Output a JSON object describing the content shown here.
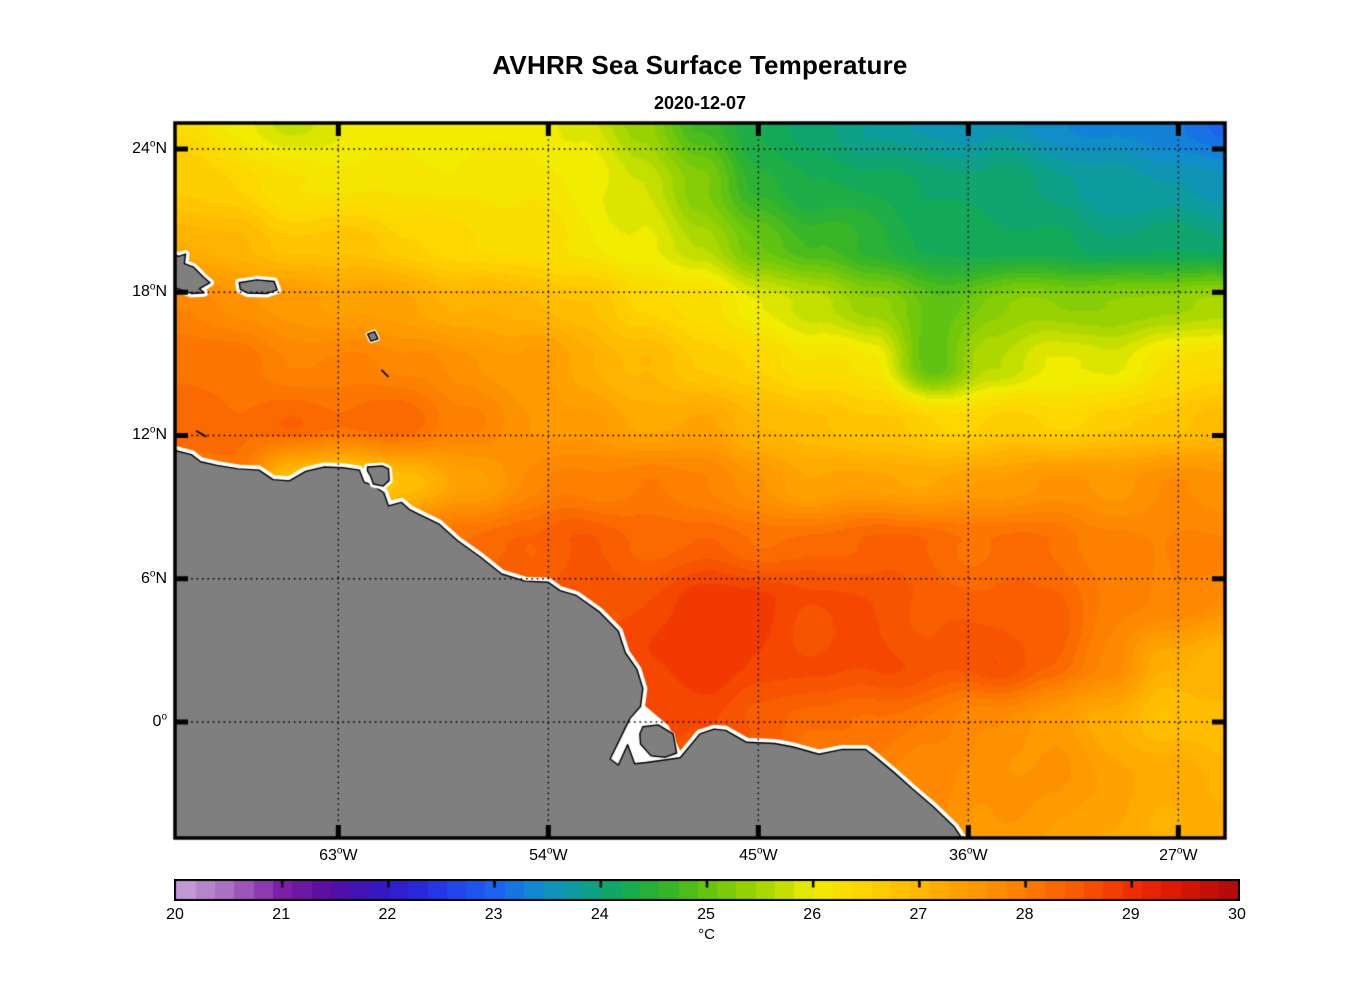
{
  "header": {
    "title": "AVHRR Sea Surface Temperature",
    "subtitle": "2020-12-07"
  },
  "axes": {
    "lon_range_w": [
      70,
      25
    ],
    "lat_range": [
      -4.86,
      25.09
    ],
    "x_ticks": [
      {
        "lon_w": 63,
        "num": "63",
        "suffix": "W",
        "display": "63°W"
      },
      {
        "lon_w": 54,
        "num": "54",
        "suffix": "W",
        "display": "54°W"
      },
      {
        "lon_w": 45,
        "num": "45",
        "suffix": "W",
        "display": "45°W"
      },
      {
        "lon_w": 36,
        "num": "36",
        "suffix": "W",
        "display": "36°W"
      },
      {
        "lon_w": 27,
        "num": "27",
        "suffix": "W",
        "display": "27°W"
      }
    ],
    "y_ticks": [
      {
        "lat": 24,
        "num": "24",
        "suffix": "N",
        "display": "24°N"
      },
      {
        "lat": 18,
        "num": "18",
        "suffix": "N",
        "display": "18°N"
      },
      {
        "lat": 12,
        "num": "12",
        "suffix": "N",
        "display": "12°N"
      },
      {
        "lat": 6,
        "num": "6",
        "suffix": "N",
        "display": "6°N"
      },
      {
        "lat": 0,
        "num": "0",
        "suffix": "",
        "display": "0°"
      }
    ],
    "grid_on": true
  },
  "colorbar": {
    "min": 20,
    "max": 30,
    "unit": "°C",
    "tick_labels": [
      "20",
      "21",
      "22",
      "23",
      "24",
      "25",
      "26",
      "27",
      "28",
      "29",
      "30"
    ],
    "segments": 55,
    "colormap_stops": [
      [
        20.0,
        "#c9a3da"
      ],
      [
        20.5,
        "#a86cc0"
      ],
      [
        21.0,
        "#7d1fa8"
      ],
      [
        21.4,
        "#5a0f9e"
      ],
      [
        21.8,
        "#3c14b8"
      ],
      [
        22.2,
        "#2b24d8"
      ],
      [
        22.6,
        "#2343ec"
      ],
      [
        23.0,
        "#1b63f0"
      ],
      [
        23.4,
        "#128bd0"
      ],
      [
        23.8,
        "#0d9f97"
      ],
      [
        24.2,
        "#12a958"
      ],
      [
        24.6,
        "#33b42a"
      ],
      [
        25.0,
        "#66c40e"
      ],
      [
        25.5,
        "#a4d600"
      ],
      [
        26.0,
        "#f2ec00"
      ],
      [
        26.5,
        "#ffd400"
      ],
      [
        27.0,
        "#ffb600"
      ],
      [
        27.5,
        "#ff9a00"
      ],
      [
        28.0,
        "#fd7d00"
      ],
      [
        28.5,
        "#f85800"
      ],
      [
        29.0,
        "#f02d00"
      ],
      [
        29.5,
        "#d81407"
      ],
      [
        30.0,
        "#ae0a0d"
      ]
    ]
  },
  "colors": {
    "background": "#ffffff",
    "land": "#7f7f7f",
    "coast_halo": "#ffffff",
    "coast_line": "#000000",
    "frame": "#000000",
    "text": "#000000"
  },
  "chart_data": {
    "type": "heatmap",
    "title": "AVHRR Sea Surface Temperature",
    "date": "2020-12-07",
    "units": "°C",
    "value_range": [
      20,
      30
    ],
    "grid_lines": {
      "lat": [
        24,
        18,
        12,
        6,
        0
      ],
      "lon_w": [
        63,
        54,
        45,
        36,
        27
      ]
    },
    "lon_w": [
      70,
      67.5,
      65,
      62.5,
      60,
      57.5,
      55,
      52.5,
      50,
      47.5,
      45,
      42.5,
      40,
      37.5,
      35,
      32.5,
      30,
      27.5,
      25
    ],
    "lat": [
      25,
      22.5,
      20,
      17.5,
      15,
      12.5,
      10,
      7.5,
      5,
      2.5,
      0,
      -2.5,
      -5
    ],
    "sst_c": [
      [
        26.3,
        26.0,
        25.7,
        25.9,
        26.0,
        26.1,
        26.0,
        25.9,
        25.4,
        24.6,
        24.3,
        24.0,
        23.8,
        23.7,
        23.6,
        23.4,
        23.3,
        23.2,
        23.0
      ],
      [
        26.6,
        26.5,
        26.3,
        26.2,
        26.2,
        26.2,
        26.1,
        26.0,
        25.8,
        25.2,
        24.6,
        24.3,
        24.2,
        24.1,
        24.0,
        23.9,
        23.8,
        23.7,
        23.6
      ],
      [
        27.2,
        27.0,
        26.8,
        26.7,
        26.5,
        26.4,
        26.3,
        26.2,
        26.0,
        25.6,
        25.0,
        24.7,
        24.4,
        24.3,
        24.2,
        24.2,
        24.1,
        24.0,
        24.0
      ],
      [
        27.8,
        27.6,
        27.5,
        27.4,
        27.3,
        27.2,
        27.0,
        26.8,
        26.5,
        26.2,
        26.0,
        25.7,
        25.4,
        25.0,
        25.2,
        25.3,
        25.3,
        25.4,
        25.5
      ],
      [
        28.2,
        28.1,
        28.0,
        27.9,
        27.8,
        27.6,
        27.4,
        27.2,
        27.0,
        26.7,
        26.5,
        26.3,
        26.0,
        24.9,
        25.6,
        25.9,
        26.0,
        26.2,
        26.4
      ],
      [
        28.3,
        28.2,
        28.3,
        28.2,
        28.2,
        28.0,
        27.6,
        27.5,
        27.3,
        27.2,
        27.0,
        26.8,
        26.7,
        26.6,
        26.6,
        26.5,
        26.6,
        26.7,
        26.8
      ],
      [
        27.9,
        28.0,
        26.8,
        26.5,
        26.9,
        27.4,
        27.7,
        27.9,
        28.0,
        27.9,
        27.6,
        27.4,
        27.3,
        27.3,
        27.4,
        27.5,
        27.6,
        27.7,
        27.7
      ],
      [
        28.2,
        28.2,
        28.2,
        28.2,
        28.2,
        28.2,
        28.3,
        28.5,
        28.4,
        28.3,
        28.2,
        28.2,
        28.3,
        28.3,
        28.2,
        28.2,
        28.0,
        27.9,
        27.8
      ],
      [
        28.5,
        28.5,
        28.5,
        28.5,
        28.5,
        28.5,
        28.5,
        28.6,
        28.6,
        28.8,
        28.8,
        28.7,
        28.6,
        28.5,
        28.4,
        28.3,
        28.0,
        27.8,
        27.7
      ],
      [
        28.6,
        28.6,
        28.6,
        28.6,
        28.6,
        28.6,
        28.6,
        28.7,
        28.8,
        28.9,
        28.8,
        28.7,
        28.6,
        28.5,
        28.6,
        28.3,
        27.9,
        27.2,
        27.0
      ],
      [
        28.8,
        28.8,
        28.8,
        28.8,
        28.8,
        28.8,
        28.8,
        28.8,
        28.9,
        28.6,
        28.4,
        28.2,
        28.1,
        28.0,
        27.8,
        27.5,
        27.2,
        26.8,
        26.8
      ],
      [
        28.3,
        28.3,
        28.3,
        28.3,
        28.3,
        28.3,
        28.3,
        28.3,
        28.3,
        28.2,
        28.2,
        28.0,
        27.9,
        27.8,
        27.6,
        27.5,
        27.4,
        27.2,
        27.1
      ],
      [
        28.0,
        28.0,
        28.0,
        28.0,
        28.0,
        28.0,
        28.0,
        28.0,
        28.0,
        28.0,
        27.9,
        27.8,
        27.7,
        27.7,
        27.5,
        27.4,
        27.3,
        27.2,
        27.1
      ]
    ]
  },
  "land": {
    "mainland_lonlat": [
      [
        70.3,
        11.45
      ],
      [
        69.3,
        11.2
      ],
      [
        68.9,
        10.9
      ],
      [
        68.2,
        10.75
      ],
      [
        67.3,
        10.6
      ],
      [
        66.4,
        10.55
      ],
      [
        65.8,
        10.15
      ],
      [
        65.1,
        10.1
      ],
      [
        64.4,
        10.5
      ],
      [
        63.6,
        10.68
      ],
      [
        62.8,
        10.65
      ],
      [
        62.1,
        10.55
      ],
      [
        61.9,
        10.05
      ],
      [
        61.5,
        9.9
      ],
      [
        61.05,
        9.6
      ],
      [
        60.85,
        9.05
      ],
      [
        60.3,
        9.2
      ],
      [
        59.95,
        8.9
      ],
      [
        59.65,
        8.75
      ],
      [
        58.7,
        8.3
      ],
      [
        57.9,
        7.6
      ],
      [
        56.9,
        6.9
      ],
      [
        56.0,
        6.2
      ],
      [
        55.0,
        5.9
      ],
      [
        54.0,
        5.85
      ],
      [
        53.5,
        5.5
      ],
      [
        52.8,
        5.3
      ],
      [
        51.8,
        4.6
      ],
      [
        51.0,
        3.8
      ],
      [
        50.7,
        2.9
      ],
      [
        50.2,
        2.2
      ],
      [
        49.95,
        1.4
      ],
      [
        50.05,
        0.65
      ],
      [
        50.5,
        0.15
      ],
      [
        50.95,
        -0.75
      ],
      [
        51.35,
        -1.55
      ],
      [
        51.0,
        -1.8
      ],
      [
        50.6,
        -0.95
      ],
      [
        50.3,
        -1.75
      ],
      [
        49.8,
        -1.7
      ],
      [
        48.35,
        -1.5
      ],
      [
        47.5,
        -0.5
      ],
      [
        46.9,
        -0.3
      ],
      [
        46.4,
        -0.35
      ],
      [
        45.5,
        -0.85
      ],
      [
        44.3,
        -0.9
      ],
      [
        43.5,
        -1.05
      ],
      [
        42.4,
        -1.35
      ],
      [
        41.4,
        -1.15
      ],
      [
        40.4,
        -1.15
      ],
      [
        40.0,
        -1.45
      ],
      [
        39.2,
        -2.1
      ],
      [
        38.4,
        -2.8
      ],
      [
        37.5,
        -3.55
      ],
      [
        36.6,
        -4.4
      ],
      [
        36.05,
        -5.2
      ],
      [
        70.3,
        -5.2
      ]
    ],
    "estuary_white_lonlat": [
      [
        50.6,
        0.55
      ],
      [
        51.55,
        -1.75
      ],
      [
        48.15,
        -1.62
      ],
      [
        48.85,
        -0.15
      ],
      [
        49.95,
        0.75
      ]
    ],
    "islands": {
      "hispaniola": [
        [
          70.3,
          19.7
        ],
        [
          69.85,
          19.5
        ],
        [
          69.55,
          19.6
        ],
        [
          69.6,
          19.2
        ],
        [
          69.2,
          19.05
        ],
        [
          68.8,
          18.65
        ],
        [
          68.5,
          18.4
        ],
        [
          68.95,
          18.15
        ],
        [
          68.75,
          17.98
        ],
        [
          69.3,
          17.95
        ],
        [
          69.9,
          18.15
        ],
        [
          70.3,
          18.1
        ]
      ],
      "puerto_rico": [
        [
          67.25,
          18.4
        ],
        [
          66.5,
          18.52
        ],
        [
          65.75,
          18.45
        ],
        [
          65.62,
          18.1
        ],
        [
          66.05,
          17.95
        ],
        [
          66.9,
          17.97
        ],
        [
          67.2,
          18.12
        ]
      ],
      "trinidad": [
        [
          61.75,
          10.68
        ],
        [
          61.1,
          10.72
        ],
        [
          60.85,
          10.6
        ],
        [
          60.82,
          10.12
        ],
        [
          61.08,
          9.88
        ],
        [
          61.5,
          9.97
        ],
        [
          61.62,
          10.3
        ],
        [
          61.75,
          10.52
        ]
      ],
      "guadeloupe": [
        [
          61.75,
          16.25
        ],
        [
          61.45,
          16.35
        ],
        [
          61.3,
          16.05
        ],
        [
          61.6,
          15.95
        ]
      ],
      "marajo": [
        [
          49.95,
          -0.2
        ],
        [
          49.3,
          -0.12
        ],
        [
          48.65,
          -0.5
        ],
        [
          48.5,
          -1.3
        ],
        [
          49.0,
          -1.48
        ],
        [
          49.6,
          -1.42
        ],
        [
          50.05,
          -0.92
        ],
        [
          50.08,
          -0.5
        ]
      ]
    },
    "small_island_dashes_lonlat": [
      [
        [
          61.15,
          14.75
        ],
        [
          60.85,
          14.45
        ]
      ],
      [
        [
          69.1,
          12.2
        ],
        [
          68.65,
          11.95
        ]
      ]
    ]
  }
}
